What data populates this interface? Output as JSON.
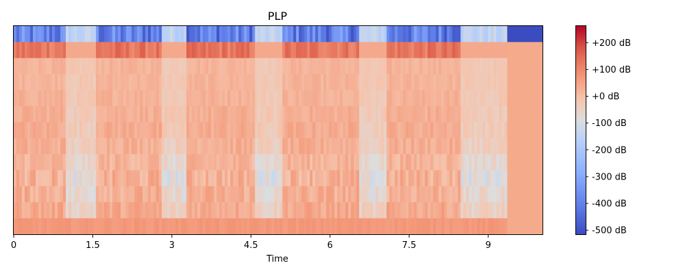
{
  "chart_data": {
    "type": "heatmap",
    "title": "PLP",
    "xlabel": "Time",
    "ylabel": "",
    "xlim": [
      0,
      10.03
    ],
    "x_ticks": [
      0,
      1.5,
      3,
      4.5,
      6,
      7.5,
      9
    ],
    "x_tick_labels": [
      "0",
      "1.5",
      "3",
      "4.5",
      "6",
      "7.5",
      "9"
    ],
    "y_ticks_shown": false,
    "n_coefficients": 13,
    "data_end_time": 9.36,
    "pad_value_db": 5,
    "colormap": "coolwarm",
    "colorbar": {
      "range_db": [
        -515,
        262
      ],
      "ticks": [
        200,
        100,
        0,
        -100,
        -200,
        -300,
        -400,
        -500
      ],
      "tick_labels": [
        "+200 dB",
        "+100 dB",
        "+0 dB",
        "-100 dB",
        "-200 dB",
        "-300 dB",
        "-400 dB",
        "-500 dB"
      ]
    },
    "coefficient_levels_db": [
      {
        "coef": 1,
        "mean_db": 70,
        "spread_db": 20
      },
      {
        "coef": 2,
        "mean_db": 40,
        "spread_db": 60
      },
      {
        "coef": 3,
        "mean_db": 30,
        "spread_db": 70
      },
      {
        "coef": 4,
        "mean_db": 25,
        "spread_db": 80
      },
      {
        "coef": 5,
        "mean_db": 20,
        "spread_db": 60
      },
      {
        "coef": 6,
        "mean_db": 30,
        "spread_db": 50
      },
      {
        "coef": 7,
        "mean_db": 35,
        "spread_db": 45
      },
      {
        "coef": 8,
        "mean_db": 30,
        "spread_db": 40
      },
      {
        "coef": 9,
        "mean_db": 25,
        "spread_db": 35
      },
      {
        "coef": 10,
        "mean_db": 20,
        "spread_db": 30
      },
      {
        "coef": 11,
        "mean_db": 20,
        "spread_db": 30
      },
      {
        "coef": 12,
        "mean_db": 25,
        "spread_db": 25
      },
      {
        "coef": 13,
        "mean_db": -250,
        "spread_db": 120
      }
    ],
    "quiet_segments": [
      [
        0.95,
        1.55
      ],
      [
        2.8,
        3.25
      ],
      [
        4.55,
        5.05
      ],
      [
        6.55,
        7.05
      ],
      [
        8.45,
        9.36
      ]
    ],
    "grid": false,
    "colors": {
      "low": "#3b4cc0",
      "mid": "#dddddd",
      "high": "#b40426",
      "pad": "#f5ab8b"
    }
  }
}
